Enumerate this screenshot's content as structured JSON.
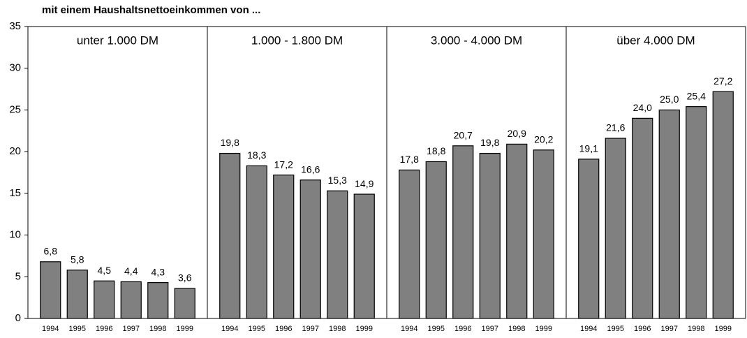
{
  "chart_data": {
    "type": "bar",
    "title": "mit einem Haushaltsnettoeinkommen  von ...",
    "color": "#808080",
    "ylim": [
      0,
      35
    ],
    "yticks": [
      0,
      5,
      10,
      15,
      20,
      25,
      30,
      35
    ],
    "groups": [
      {
        "name": "unter 1.000 DM",
        "categories": [
          "1994",
          "1995",
          "1996",
          "1997",
          "1998",
          "1999"
        ],
        "values": [
          6.8,
          5.8,
          4.5,
          4.4,
          4.3,
          3.6
        ],
        "value_labels": [
          "6,8",
          "5,8",
          "4,5",
          "4,4",
          "4,3",
          "3,6"
        ]
      },
      {
        "name": "1.000  - 1.800 DM",
        "categories": [
          "1994",
          "1995",
          "1996",
          "1997",
          "1998",
          "1999"
        ],
        "values": [
          19.8,
          18.3,
          17.2,
          16.6,
          15.3,
          14.9
        ],
        "value_labels": [
          "19,8",
          "18,3",
          "17,2",
          "16,6",
          "15,3",
          "14,9"
        ]
      },
      {
        "name": "3.000 - 4.000 DM",
        "categories": [
          "1994",
          "1995",
          "1996",
          "1997",
          "1998",
          "1999"
        ],
        "values": [
          17.8,
          18.8,
          20.7,
          19.8,
          20.9,
          20.2
        ],
        "value_labels": [
          "17,8",
          "18,8",
          "20,7",
          "19,8",
          "20,9",
          "20,2"
        ]
      },
      {
        "name": "über 4.000 DM",
        "categories": [
          "1994",
          "1995",
          "1996",
          "1997",
          "1998",
          "1999"
        ],
        "values": [
          19.1,
          21.6,
          24.0,
          25.0,
          25.4,
          27.2
        ],
        "value_labels": [
          "19,1",
          "21,6",
          "24,0",
          "25,0",
          "25,4",
          "27,2"
        ]
      }
    ]
  }
}
